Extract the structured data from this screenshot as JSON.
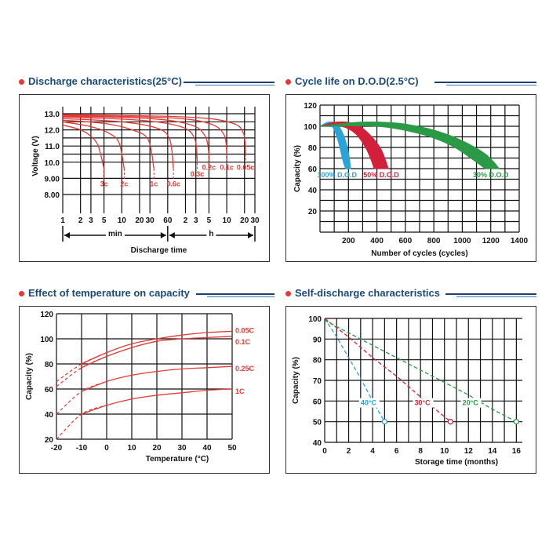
{
  "colors": {
    "title": "#1a4a78",
    "bullet": "#e53935",
    "red": "#e53935",
    "blue": "#29a3d8",
    "crimson": "#d3203a",
    "green": "#2a9a47",
    "grid": "#111111"
  },
  "panels": {
    "discharge": {
      "title": "Discharge characteristics(25°C)",
      "chart_data": {
        "type": "line",
        "ylabel": "Voltage (V)",
        "xlabel": "Discharge time",
        "y_ticks": [
          "13.0",
          "12.0",
          "11.0",
          "10.0",
          "9.00",
          "8.00"
        ],
        "y_tick_values": [
          13.0,
          12.5,
          12.0,
          11.5,
          11.0,
          10.5,
          10.0,
          9.0,
          8.0
        ],
        "x_ticks": [
          "1",
          "2",
          "3",
          "5",
          "10",
          "20",
          "30",
          "60",
          "2",
          "3",
          "5",
          "10",
          "20",
          "30"
        ],
        "x_ticks_minutes": [
          1,
          2,
          3,
          5,
          10,
          20,
          30,
          60,
          120,
          180,
          300,
          600,
          1200,
          1800
        ],
        "unit_labels": {
          "min": "min",
          "h": "h"
        },
        "series": [
          {
            "name": "3c",
            "x_minutes": [
              1,
              2,
              3,
              4,
              5
            ],
            "y": [
              12.3,
              12.0,
              11.6,
              11.0,
              9.6
            ]
          },
          {
            "name": "2c",
            "x_minutes": [
              1,
              3,
              6,
              9,
              11
            ],
            "y": [
              12.5,
              12.2,
              11.8,
              11.2,
              9.6
            ]
          },
          {
            "name": "1c",
            "x_minutes": [
              1,
              5,
              15,
              28,
              35
            ],
            "y": [
              12.6,
              12.4,
              12.0,
              11.4,
              9.6
            ]
          },
          {
            "name": "0.6c",
            "x_minutes": [
              1,
              10,
              40,
              65,
              75
            ],
            "y": [
              12.7,
              12.5,
              12.1,
              11.4,
              9.6
            ]
          },
          {
            "name": "0.3c",
            "x_minutes": [
              1,
              20,
              100,
              170,
              190
            ],
            "y": [
              12.8,
              12.6,
              12.2,
              11.5,
              10.2
            ]
          },
          {
            "name": "0.2c",
            "x_minutes": [
              1,
              30,
              150,
              260,
              300
            ],
            "y": [
              12.85,
              12.7,
              12.3,
              11.6,
              10.5
            ]
          },
          {
            "name": "0.1c",
            "x_minutes": [
              1,
              60,
              300,
              540,
              600
            ],
            "y": [
              12.9,
              12.75,
              12.4,
              11.7,
              10.5
            ]
          },
          {
            "name": "0.05c",
            "x_minutes": [
              1,
              120,
              700,
              1150,
              1250
            ],
            "y": [
              12.95,
              12.8,
              12.45,
              11.8,
              10.5
            ]
          }
        ]
      }
    },
    "cycle": {
      "title": "Cycle life on D.O.D(2.5°C)",
      "chart_data": {
        "type": "area",
        "ylabel": "Capacity (%)",
        "xlabel": "Number of cycles (cycles)",
        "y_ticks": [
          120,
          100,
          80,
          60,
          40,
          20
        ],
        "x_ticks": [
          200,
          400,
          600,
          800,
          1000,
          1200,
          1400
        ],
        "xlim": [
          0,
          1400
        ],
        "ylim": [
          0,
          120
        ],
        "series": [
          {
            "name": "100% D.O.D",
            "upper": [
              [
                0,
                100
              ],
              [
                60,
                104
              ],
              [
                120,
                102
              ],
              [
                170,
                90
              ],
              [
                200,
                75
              ],
              [
                215,
                60
              ]
            ],
            "lower": [
              [
                0,
                100
              ],
              [
                40,
                102
              ],
              [
                90,
                99
              ],
              [
                130,
                85
              ],
              [
                160,
                68
              ],
              [
                180,
                60
              ]
            ]
          },
          {
            "name": "50% D.O.D",
            "upper": [
              [
                0,
                100
              ],
              [
                120,
                104
              ],
              [
                250,
                102
              ],
              [
                350,
                92
              ],
              [
                430,
                78
              ],
              [
                480,
                60
              ]
            ],
            "lower": [
              [
                0,
                100
              ],
              [
                150,
                100
              ],
              [
                250,
                93
              ],
              [
                320,
                80
              ],
              [
                360,
                68
              ],
              [
                380,
                60
              ]
            ]
          },
          {
            "name": "30% D.O.D",
            "upper": [
              [
                0,
                100
              ],
              [
                300,
                104
              ],
              [
                600,
                102
              ],
              [
                900,
                92
              ],
              [
                1150,
                75
              ],
              [
                1260,
                60
              ]
            ],
            "lower": [
              [
                0,
                100
              ],
              [
                400,
                100
              ],
              [
                700,
                93
              ],
              [
                920,
                82
              ],
              [
                1080,
                68
              ],
              [
                1160,
                60
              ]
            ]
          }
        ]
      }
    },
    "temperature": {
      "title": "Effect of temperature on capacity",
      "chart_data": {
        "type": "line",
        "ylabel": "Capacity (%)",
        "xlabel": "Temperature (°C)",
        "y_ticks": [
          120,
          100,
          80,
          60,
          40,
          20
        ],
        "x_ticks": [
          -20,
          -10,
          0,
          10,
          20,
          30,
          40,
          50
        ],
        "xlim": [
          -20,
          50
        ],
        "ylim": [
          20,
          120
        ],
        "series": [
          {
            "name": "0.05C",
            "x": [
              -20,
              -10,
              0,
              10,
              20,
              30,
              40,
              50
            ],
            "y": [
              66,
              80,
              89,
              96,
              100,
              103,
              105,
              106
            ]
          },
          {
            "name": "0.1C",
            "x": [
              -20,
              -10,
              0,
              10,
              20,
              30,
              40,
              50
            ],
            "y": [
              62,
              77,
              86,
              93,
              98,
              100,
              101,
              102
            ]
          },
          {
            "name": "0.25C",
            "x": [
              -20,
              -10,
              0,
              10,
              20,
              30,
              40,
              50
            ],
            "y": [
              40,
              58,
              66,
              71,
              74,
              76,
              77,
              78
            ]
          },
          {
            "name": "1C",
            "x": [
              -20,
              -10,
              0,
              10,
              20,
              30,
              40,
              50
            ],
            "y": [
              20,
              40,
              47,
              52,
              55,
              57,
              59,
              60
            ]
          }
        ]
      }
    },
    "self_discharge": {
      "title": "Self-discharge characteristics",
      "chart_data": {
        "type": "line",
        "ylabel": "Capacity (%)",
        "xlabel": "Storage time (months)",
        "y_ticks": [
          100,
          90,
          80,
          70,
          60,
          50,
          40
        ],
        "x_ticks": [
          0,
          2,
          4,
          6,
          8,
          10,
          12,
          14,
          16
        ],
        "xlim": [
          0,
          16.5
        ],
        "ylim": [
          40,
          100
        ],
        "series": [
          {
            "name": "40°C",
            "x": [
              0,
              1,
              2,
              3,
              4,
              5
            ],
            "y": [
              100,
              91,
              81,
              71,
              60,
              50
            ]
          },
          {
            "name": "30°C",
            "x": [
              0,
              2,
              4,
              6,
              8,
              10.5
            ],
            "y": [
              100,
              91,
              81,
              72,
              62,
              50
            ]
          },
          {
            "name": "20°C",
            "x": [
              0,
              2,
              4,
              6,
              8,
              10,
              12,
              14,
              16
            ],
            "y": [
              99,
              93,
              87,
              81,
              75,
              69,
              63,
              56,
              50
            ]
          }
        ]
      }
    }
  }
}
